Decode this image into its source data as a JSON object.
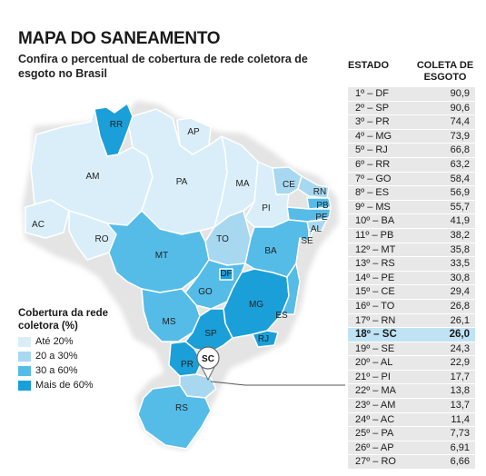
{
  "title": "MAPA DO SANEAMENTO",
  "subtitle": "Confira o percentual de cobertura de rede coletora de esgoto no Brasil",
  "legend": {
    "title": "Cobertura da rede coletora (%)",
    "items": [
      {
        "label": "Até 20%",
        "color": "#d9eef9"
      },
      {
        "label": "20 a 30%",
        "color": "#a7d8f0"
      },
      {
        "label": "30 a 60%",
        "color": "#55bce8"
      },
      {
        "label": "Mais de 60%",
        "color": "#1b9fd9"
      }
    ]
  },
  "table": {
    "col_state": "ESTADO",
    "col_value": "COLETA DE ESGOTO",
    "rows": [
      {
        "rank": "1º – DF",
        "value": "90,9"
      },
      {
        "rank": "2º – SP",
        "value": "90,6"
      },
      {
        "rank": "3º – PR",
        "value": "74,4"
      },
      {
        "rank": "4º – MG",
        "value": "73,9"
      },
      {
        "rank": "5º – RJ",
        "value": "66,8"
      },
      {
        "rank": "6º – RR",
        "value": "63,2"
      },
      {
        "rank": "7º – GO",
        "value": "58,4"
      },
      {
        "rank": "8º – ES",
        "value": "56,9"
      },
      {
        "rank": "9º – MS",
        "value": "55,7"
      },
      {
        "rank": "10º – BA",
        "value": "41,9"
      },
      {
        "rank": "11º – PB",
        "value": "38,2"
      },
      {
        "rank": "12º – MT",
        "value": "35,8"
      },
      {
        "rank": "13º – RS",
        "value": "33,5"
      },
      {
        "rank": "14º – PE",
        "value": "30,8"
      },
      {
        "rank": "15º – CE",
        "value": "29,4"
      },
      {
        "rank": "16º – TO",
        "value": "26,8"
      },
      {
        "rank": "17º – RN",
        "value": "26,1"
      },
      {
        "rank": "18º – SC",
        "value": "26,0"
      },
      {
        "rank": "19º – SE",
        "value": "24,3"
      },
      {
        "rank": "20º – AL",
        "value": "22,9"
      },
      {
        "rank": "21º – PI",
        "value": "17,7"
      },
      {
        "rank": "22º – MA",
        "value": "13,8"
      },
      {
        "rank": "23º – AM",
        "value": "13,7"
      },
      {
        "rank": "24º – AC",
        "value": "11,4"
      },
      {
        "rank": "25º – PA",
        "value": "7,73"
      },
      {
        "rank": "26º – AP",
        "value": "6,91"
      },
      {
        "rank": "27º – RO",
        "value": "6,66"
      }
    ],
    "highlight_index": 17
  },
  "map": {
    "highlight_state": "SC",
    "states": [
      {
        "id": "RR",
        "label": "RR",
        "color": "#1b9fd9"
      },
      {
        "id": "AP",
        "label": "AP",
        "color": "#d9eef9"
      },
      {
        "id": "AM",
        "label": "AM",
        "color": "#d9eef9"
      },
      {
        "id": "PA",
        "label": "PA",
        "color": "#d9eef9"
      },
      {
        "id": "MA",
        "label": "MA",
        "color": "#d9eef9"
      },
      {
        "id": "CE",
        "label": "CE",
        "color": "#a7d8f0"
      },
      {
        "id": "RN",
        "label": "RN",
        "color": "#a7d8f0"
      },
      {
        "id": "PB",
        "label": "PB",
        "color": "#55bce8"
      },
      {
        "id": "PE",
        "label": "PE",
        "color": "#55bce8"
      },
      {
        "id": "AL",
        "label": "AL",
        "color": "#a7d8f0"
      },
      {
        "id": "SE",
        "label": "SE",
        "color": "#a7d8f0"
      },
      {
        "id": "PI",
        "label": "PI",
        "color": "#d9eef9"
      },
      {
        "id": "AC",
        "label": "AC",
        "color": "#d9eef9"
      },
      {
        "id": "RO",
        "label": "RO",
        "color": "#d9eef9"
      },
      {
        "id": "TO",
        "label": "TO",
        "color": "#a7d8f0"
      },
      {
        "id": "BA",
        "label": "BA",
        "color": "#55bce8"
      },
      {
        "id": "MT",
        "label": "MT",
        "color": "#55bce8"
      },
      {
        "id": "GO",
        "label": "GO",
        "color": "#55bce8"
      },
      {
        "id": "DF",
        "label": "DF",
        "color": "#1b9fd9"
      },
      {
        "id": "MG",
        "label": "MG",
        "color": "#1b9fd9"
      },
      {
        "id": "ES",
        "label": "ES",
        "color": "#55bce8"
      },
      {
        "id": "MS",
        "label": "MS",
        "color": "#55bce8"
      },
      {
        "id": "SP",
        "label": "SP",
        "color": "#1b9fd9"
      },
      {
        "id": "RJ",
        "label": "RJ",
        "color": "#1b9fd9"
      },
      {
        "id": "PR",
        "label": "PR",
        "color": "#1b9fd9"
      },
      {
        "id": "SC",
        "label": "SC",
        "color": "#a7d8f0"
      },
      {
        "id": "RS",
        "label": "RS",
        "color": "#55bce8"
      }
    ]
  }
}
